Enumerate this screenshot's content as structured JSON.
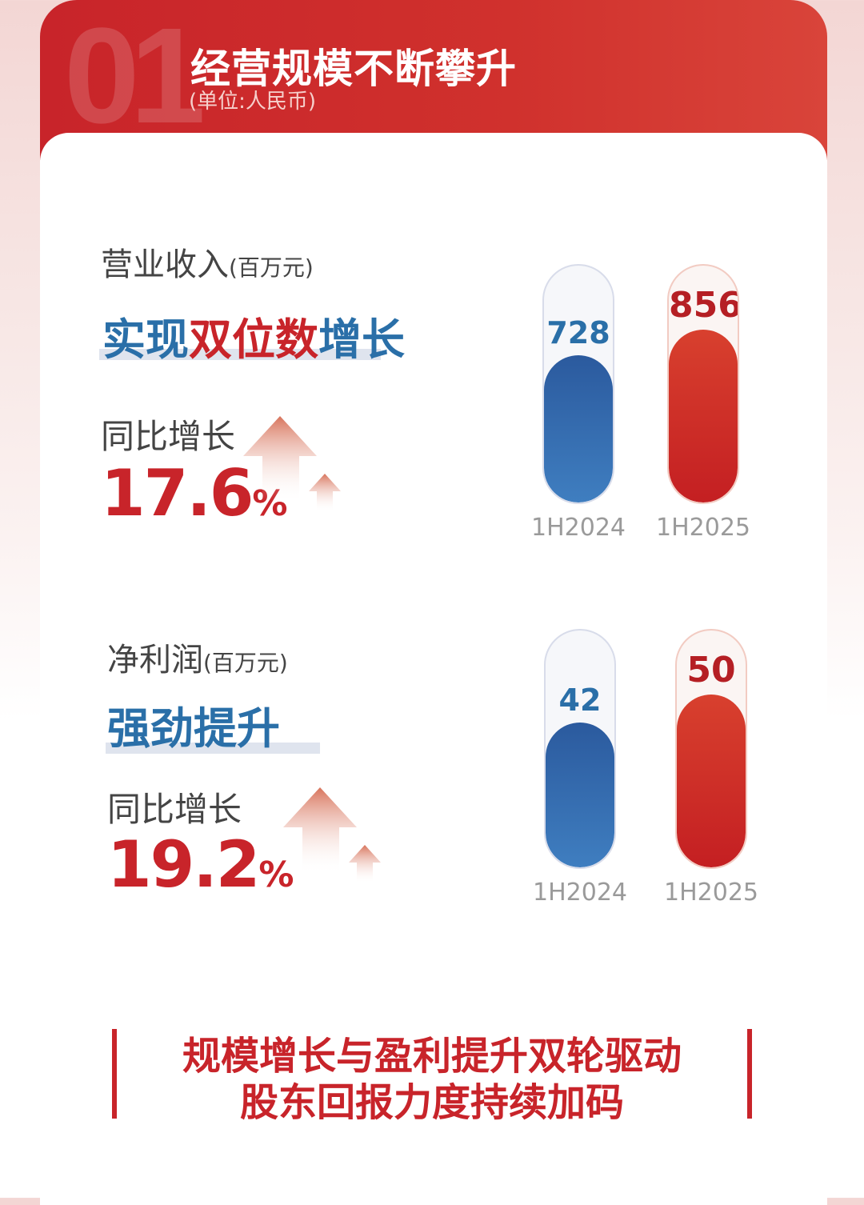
{
  "header": {
    "number": "01",
    "title": "经营规模不断攀升",
    "unit": "(单位:人民币)"
  },
  "sections": [
    {
      "label": "营业收入",
      "label_unit": "(百万元)",
      "headline": [
        {
          "t": "实现",
          "c": "blue"
        },
        {
          "t": "双位数",
          "c": "red"
        },
        {
          "t": "增长",
          "c": "blue"
        }
      ],
      "yoy_label": "同比增长",
      "yoy_value": "17.6",
      "yoy_unit": "%"
    },
    {
      "label": "净利润",
      "label_unit": "(百万元)",
      "headline": [
        {
          "t": "强劲提升",
          "c": "blue"
        }
      ],
      "yoy_label": "同比增长",
      "yoy_value": "19.2",
      "yoy_unit": "%"
    }
  ],
  "chart_data": [
    {
      "type": "bar",
      "categories": [
        "1H2024",
        "1H2025"
      ],
      "values": [
        728,
        856
      ],
      "labels": [
        "728",
        "856"
      ],
      "colors": [
        "#2b5a9e",
        "#c8242a"
      ]
    },
    {
      "type": "bar",
      "categories": [
        "1H2024",
        "1H2025"
      ],
      "values": [
        42,
        50
      ],
      "labels": [
        "42",
        "50"
      ],
      "colors": [
        "#2b5a9e",
        "#c8242a"
      ]
    }
  ],
  "slogan": {
    "line1": "规模增长与盈利提升双轮驱动",
    "line2": "股东回报力度持续加码"
  },
  "colors": {
    "accent_red": "#c8242a",
    "accent_blue": "#2a6fa8"
  }
}
